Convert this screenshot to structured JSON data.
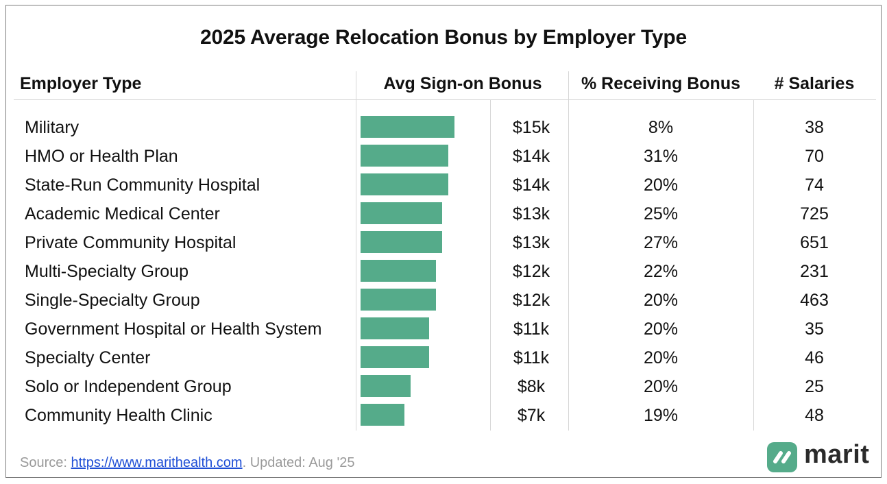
{
  "chart_data": {
    "type": "table",
    "title": "2025 Average Relocation Bonus by Employer Type",
    "columns": [
      "Employer Type",
      "Avg Sign-on Bonus",
      "% Receiving Bonus",
      "# Salaries"
    ],
    "bar_color": "#55ab8a",
    "bar_max": 15,
    "rows": [
      {
        "name": "Military",
        "bonus": 15,
        "bonus_label": "$15k",
        "pct": "8%",
        "salaries": "38"
      },
      {
        "name": "HMO or Health Plan",
        "bonus": 14,
        "bonus_label": "$14k",
        "pct": "31%",
        "salaries": "70"
      },
      {
        "name": "State-Run Community Hospital",
        "bonus": 14,
        "bonus_label": "$14k",
        "pct": "20%",
        "salaries": "74"
      },
      {
        "name": "Academic Medical Center",
        "bonus": 13,
        "bonus_label": "$13k",
        "pct": "25%",
        "salaries": "725"
      },
      {
        "name": "Private Community Hospital",
        "bonus": 13,
        "bonus_label": "$13k",
        "pct": "27%",
        "salaries": "651"
      },
      {
        "name": "Multi-Specialty Group",
        "bonus": 12,
        "bonus_label": "$12k",
        "pct": "22%",
        "salaries": "231"
      },
      {
        "name": "Single-Specialty Group",
        "bonus": 12,
        "bonus_label": "$12k",
        "pct": "20%",
        "salaries": "463"
      },
      {
        "name": "Government Hospital or Health System",
        "bonus": 11,
        "bonus_label": "$11k",
        "pct": "20%",
        "salaries": "35"
      },
      {
        "name": "Specialty Center",
        "bonus": 11,
        "bonus_label": "$11k",
        "pct": "20%",
        "salaries": "46"
      },
      {
        "name": "Solo or Independent Group",
        "bonus": 8,
        "bonus_label": "$8k",
        "pct": "20%",
        "salaries": "25"
      },
      {
        "name": "Community Health Clinic",
        "bonus": 7,
        "bonus_label": "$7k",
        "pct": "19%",
        "salaries": "48"
      }
    ]
  },
  "footer": {
    "source_label": "Source: ",
    "source_link": "https://www.marithealth.com",
    "updated": ". Updated: Aug '25"
  },
  "logo": {
    "text": "marit",
    "color": "#55ab8a"
  }
}
